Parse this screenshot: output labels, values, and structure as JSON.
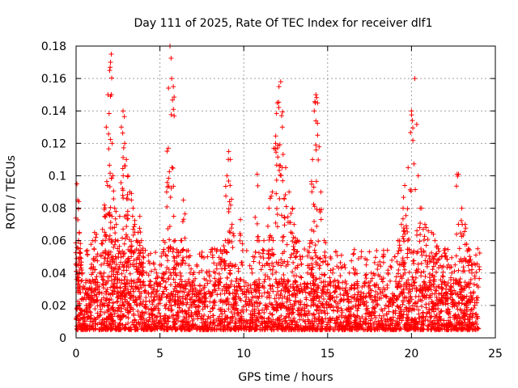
{
  "chart_data": {
    "type": "scatter",
    "title": "Day 111 of 2025, Rate Of TEC Index for receiver dlf1",
    "xlabel": "GPS time / hours",
    "ylabel": "ROTI / TECUs",
    "xlim": [
      0,
      25
    ],
    "ylim": [
      0,
      0.18
    ],
    "xticks": [
      0,
      5,
      10,
      15,
      20,
      25
    ],
    "xtick_labels": [
      "0",
      "5",
      "10",
      "15",
      "20",
      "25"
    ],
    "yticks": [
      0,
      0.02,
      0.04,
      0.06,
      0.08,
      0.1,
      0.12,
      0.14,
      0.16,
      0.18
    ],
    "ytick_labels": [
      "0",
      "0.02",
      "0.04",
      "0.06",
      "0.08",
      "0.1",
      "0.12",
      "0.14",
      "0.16",
      "0.18"
    ],
    "grid": true,
    "marker": "+",
    "series": [
      {
        "name": "ROTI",
        "color": "#ff0000",
        "x": [
          0.05,
          0.1,
          0.15,
          0.2,
          0.25,
          0.3,
          0.35,
          0.4,
          0.5,
          0.6,
          0.7,
          0.8,
          0.9,
          1.0,
          1.1,
          1.2,
          1.3,
          1.4,
          1.5,
          1.6,
          1.7,
          1.8,
          1.9,
          2.0,
          2.05,
          2.1,
          2.15,
          2.2,
          2.3,
          2.4,
          2.5,
          2.6,
          2.7,
          2.8,
          2.9,
          3.0,
          3.1,
          3.2,
          3.3,
          3.4,
          3.5,
          3.6,
          3.7,
          3.8,
          3.9,
          4.0,
          4.2,
          4.4,
          4.6,
          4.8,
          5.0,
          5.2,
          5.4,
          5.5,
          5.6,
          5.7,
          5.8,
          5.9,
          6.0,
          6.1,
          6.2,
          6.3,
          6.4,
          6.6,
          6.8,
          7.0,
          7.2,
          7.5,
          7.8,
          8.0,
          8.3,
          8.6,
          8.9,
          9.0,
          9.1,
          9.2,
          9.3,
          9.5,
          9.8,
          10.0,
          10.2,
          10.5,
          10.8,
          11.0,
          11.2,
          11.5,
          11.7,
          11.9,
          12.0,
          12.1,
          12.2,
          12.3,
          12.5,
          12.7,
          12.9,
          13.0,
          13.2,
          13.5,
          13.8,
          14.0,
          14.1,
          14.2,
          14.3,
          14.4,
          14.6,
          14.8,
          15.0,
          15.3,
          15.6,
          16.0,
          16.3,
          16.6,
          17.0,
          17.3,
          17.6,
          18.0,
          18.3,
          18.6,
          19.0,
          19.2,
          19.4,
          19.5,
          19.6,
          19.8,
          20.0,
          20.2,
          20.4,
          20.6,
          20.8,
          21.0,
          21.2,
          21.4,
          21.6,
          21.8,
          22.0,
          22.2,
          22.4,
          22.6,
          22.8,
          23.0,
          23.2,
          23.4,
          23.6,
          23.8,
          23.95
        ],
        "y": [
          0.095,
          0.085,
          0.06,
          0.065,
          0.055,
          0.045,
          0.04,
          0.03,
          0.025,
          0.02,
          0.03,
          0.035,
          0.025,
          0.06,
          0.065,
          0.05,
          0.03,
          0.04,
          0.045,
          0.06,
          0.075,
          0.13,
          0.15,
          0.165,
          0.17,
          0.175,
          0.12,
          0.1,
          0.08,
          0.07,
          0.06,
          0.075,
          0.13,
          0.14,
          0.12,
          0.11,
          0.1,
          0.09,
          0.085,
          0.08,
          0.07,
          0.06,
          0.065,
          0.075,
          0.06,
          0.05,
          0.04,
          0.035,
          0.03,
          0.04,
          0.045,
          0.06,
          0.09,
          0.117,
          0.18,
          0.16,
          0.155,
          0.06,
          0.05,
          0.045,
          0.04,
          0.06,
          0.085,
          0.05,
          0.04,
          0.035,
          0.045,
          0.05,
          0.04,
          0.035,
          0.04,
          0.045,
          0.06,
          0.1,
          0.115,
          0.11,
          0.07,
          0.045,
          0.073,
          0.035,
          0.03,
          0.04,
          0.101,
          0.05,
          0.06,
          0.08,
          0.09,
          0.12,
          0.145,
          0.155,
          0.158,
          0.13,
          0.105,
          0.09,
          0.08,
          0.07,
          0.06,
          0.05,
          0.04,
          0.06,
          0.11,
          0.14,
          0.15,
          0.125,
          0.09,
          0.06,
          0.045,
          0.04,
          0.035,
          0.045,
          0.04,
          0.04,
          0.05,
          0.045,
          0.04,
          0.045,
          0.05,
          0.04,
          0.05,
          0.06,
          0.07,
          0.08,
          0.094,
          0.105,
          0.14,
          0.16,
          0.1,
          0.08,
          0.07,
          0.066,
          0.065,
          0.06,
          0.055,
          0.05,
          0.055,
          0.045,
          0.04,
          0.045,
          0.101,
          0.08,
          0.07,
          0.055,
          0.04,
          0.045,
          0.055
        ],
        "baseline_band": [
          0.005,
          0.035
        ]
      }
    ]
  }
}
